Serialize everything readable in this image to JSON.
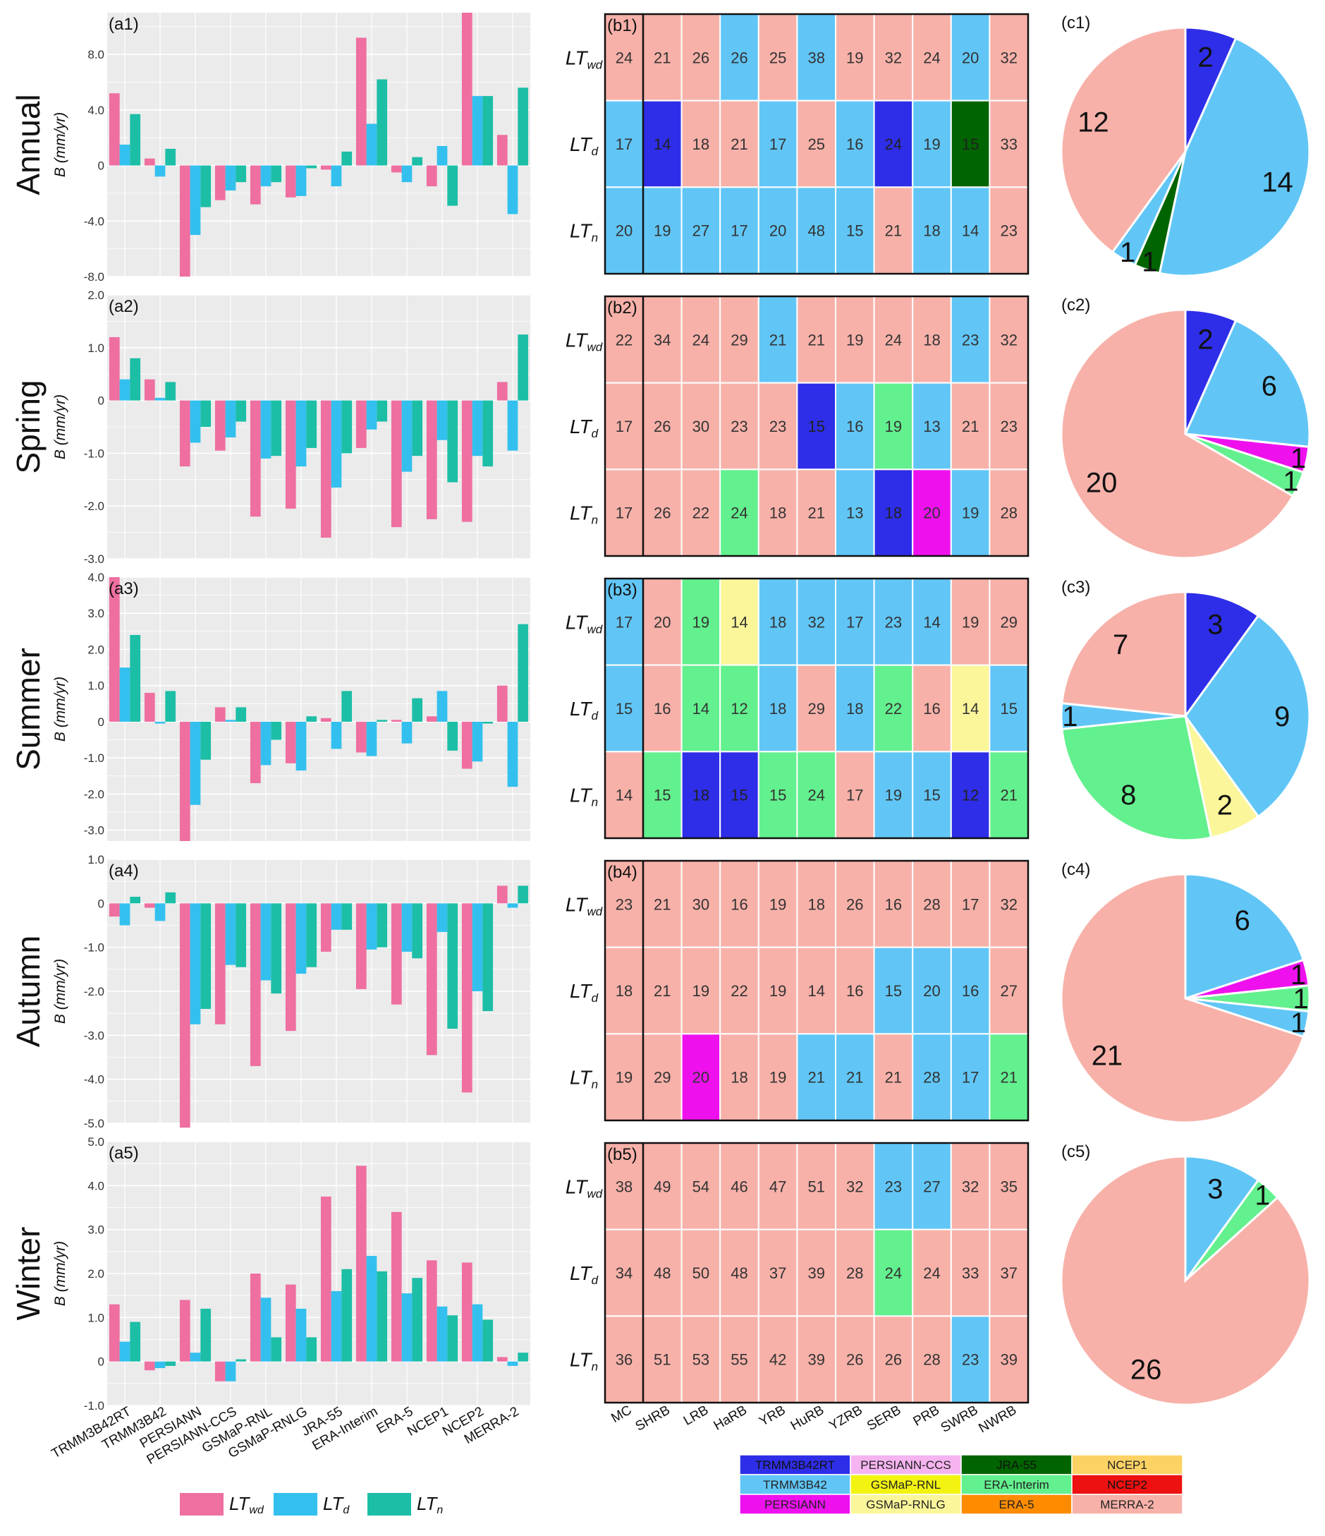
{
  "chart_data": {
    "type": "bar",
    "seasons": [
      "Annual",
      "Spring",
      "Summer",
      "Autumn",
      "Winter"
    ],
    "ylabel": "B (mm/yr)",
    "products": [
      "TRMM3B42RT",
      "TRMM3B42",
      "PERSIANN",
      "PERSIANN-CCS",
      "GSMaP-RNL",
      "GSMaP-RNLG",
      "JRA-55",
      "ERA-Interim",
      "ERA-5",
      "NCEP1",
      "NCEP2",
      "MERRA-2"
    ],
    "series": [
      "LTwd",
      "LTd",
      "LTn"
    ],
    "series_colors": [
      "#ee6fa0",
      "#33c0ee",
      "#1cbea6"
    ],
    "legend": {
      "items": [
        {
          "main": "LT",
          "sub": "wd",
          "color": "#ee6fa0"
        },
        {
          "main": "LT",
          "sub": "d",
          "color": "#33c0ee"
        },
        {
          "main": "LT",
          "sub": "n",
          "color": "#1cbea6"
        }
      ]
    },
    "bar_panels": [
      {
        "label": "(a1)",
        "season": "Annual",
        "ylim": [
          -8,
          11
        ],
        "yticks": [
          {
            "v": 8,
            "t": "8.0"
          },
          {
            "v": 4,
            "t": "4.0"
          },
          {
            "v": 0,
            "t": "0"
          },
          {
            "v": -4,
            "t": "-4.0"
          },
          {
            "v": -8,
            "t": "-8.0"
          }
        ],
        "values": [
          [
            5.2,
            1.5,
            3.7
          ],
          [
            0.5,
            -0.8,
            1.2
          ],
          [
            -8.0,
            -5.0,
            -3.0
          ],
          [
            -2.5,
            -1.8,
            -1.2
          ],
          [
            -2.8,
            -1.5,
            -1.2
          ],
          [
            -2.3,
            -2.2,
            -0.2
          ],
          [
            -0.3,
            -1.5,
            1.0
          ],
          [
            9.2,
            3.0,
            6.2
          ],
          [
            -0.5,
            -1.2,
            0.6
          ],
          [
            -1.5,
            1.4,
            -2.9
          ],
          [
            11.0,
            5.0,
            5.0
          ],
          [
            2.2,
            -3.5,
            5.6
          ]
        ]
      },
      {
        "label": "(a2)",
        "season": "Spring",
        "ylim": [
          -3,
          2
        ],
        "yticks": [
          {
            "v": 2,
            "t": "2.0"
          },
          {
            "v": 1,
            "t": "1.0"
          },
          {
            "v": 0,
            "t": "0"
          },
          {
            "v": -1,
            "t": "-1.0"
          },
          {
            "v": -2,
            "t": "-2.0"
          },
          {
            "v": -3,
            "t": "-3.0"
          }
        ],
        "values": [
          [
            1.2,
            0.4,
            0.8
          ],
          [
            0.4,
            0.05,
            0.35
          ],
          [
            -1.25,
            -0.8,
            -0.5
          ],
          [
            -0.95,
            -0.7,
            -0.4
          ],
          [
            -2.2,
            -1.1,
            -1.05
          ],
          [
            -2.05,
            -1.25,
            -0.9
          ],
          [
            -2.6,
            -1.65,
            -1.0
          ],
          [
            -0.9,
            -0.55,
            -0.4
          ],
          [
            -2.4,
            -1.35,
            -1.05
          ],
          [
            -2.25,
            -0.75,
            -1.55
          ],
          [
            -2.3,
            -1.05,
            -1.25
          ],
          [
            0.35,
            -0.95,
            1.25
          ]
        ]
      },
      {
        "label": "(a3)",
        "season": "Summer",
        "ylim": [
          -3.3,
          4
        ],
        "yticks": [
          {
            "v": 4,
            "t": "4.0"
          },
          {
            "v": 3,
            "t": "3.0"
          },
          {
            "v": 2,
            "t": "2.0"
          },
          {
            "v": 1,
            "t": "1.0"
          },
          {
            "v": 0,
            "t": "0"
          },
          {
            "v": -1,
            "t": "-1.0"
          },
          {
            "v": -2,
            "t": "-2.0"
          },
          {
            "v": -3,
            "t": "-3.0"
          }
        ],
        "values": [
          [
            4.0,
            1.5,
            2.4
          ],
          [
            0.8,
            -0.05,
            0.85
          ],
          [
            -3.3,
            -2.3,
            -1.05
          ],
          [
            0.4,
            0.05,
            0.4
          ],
          [
            -1.7,
            -1.2,
            -0.5
          ],
          [
            -1.15,
            -1.35,
            0.15
          ],
          [
            0.1,
            -0.75,
            0.85
          ],
          [
            -0.85,
            -0.95,
            0.05
          ],
          [
            0.05,
            -0.6,
            0.65
          ],
          [
            0.15,
            0.85,
            -0.8
          ],
          [
            -1.3,
            -1.1,
            -0.05
          ],
          [
            1.0,
            -1.8,
            2.7
          ]
        ]
      },
      {
        "label": "(a4)",
        "season": "Autumn",
        "ylim": [
          -5,
          1
        ],
        "yticks": [
          {
            "v": 1,
            "t": "1.0"
          },
          {
            "v": 0,
            "t": "0"
          },
          {
            "v": -1,
            "t": "-1.0"
          },
          {
            "v": -2,
            "t": "-2.0"
          },
          {
            "v": -3,
            "t": "-3.0"
          },
          {
            "v": -4,
            "t": "-4.0"
          },
          {
            "v": -5,
            "t": "-5.0"
          }
        ],
        "values": [
          [
            -0.3,
            -0.5,
            0.15
          ],
          [
            -0.1,
            -0.4,
            0.25
          ],
          [
            -5.1,
            -2.75,
            -2.4
          ],
          [
            -2.75,
            -1.4,
            -1.45
          ],
          [
            -3.7,
            -1.75,
            -2.05
          ],
          [
            -2.9,
            -1.6,
            -1.45
          ],
          [
            -1.1,
            -0.6,
            -0.6
          ],
          [
            -1.95,
            -1.05,
            -1.0
          ],
          [
            -2.3,
            -1.1,
            -1.25
          ],
          [
            -3.45,
            -0.65,
            -2.85
          ],
          [
            -4.3,
            -2.0,
            -2.45
          ],
          [
            0.4,
            -0.1,
            0.4
          ]
        ]
      },
      {
        "label": "(a5)",
        "season": "Winter",
        "ylim": [
          -1,
          5
        ],
        "yticks": [
          {
            "v": 5,
            "t": "5.0"
          },
          {
            "v": 4,
            "t": "4.0"
          },
          {
            "v": 3,
            "t": "3.0"
          },
          {
            "v": 2,
            "t": "2.0"
          },
          {
            "v": 1,
            "t": "1.0"
          },
          {
            "v": 0,
            "t": "0"
          },
          {
            "v": -1,
            "t": "-1.0"
          }
        ],
        "values": [
          [
            1.3,
            0.45,
            0.9
          ],
          [
            -0.2,
            -0.15,
            -0.1
          ],
          [
            1.4,
            0.2,
            1.2
          ],
          [
            -0.45,
            -0.45,
            0.05
          ],
          [
            2.0,
            1.45,
            0.55
          ],
          [
            1.75,
            1.2,
            0.55
          ],
          [
            3.75,
            1.6,
            2.1
          ],
          [
            4.45,
            2.4,
            2.05
          ],
          [
            3.4,
            1.55,
            1.9
          ],
          [
            2.3,
            1.25,
            1.05
          ],
          [
            2.25,
            1.3,
            0.95
          ],
          [
            0.1,
            -0.1,
            0.2
          ]
        ]
      }
    ],
    "table_columns": [
      "MC",
      "SHRB",
      "LRB",
      "HaRB",
      "YRB",
      "HuRB",
      "YZRB",
      "SERB",
      "PRB",
      "SWRB",
      "NWRB"
    ],
    "table_rows": [
      {
        "main": "LT",
        "sub": "wd"
      },
      {
        "main": "LT",
        "sub": "d"
      },
      {
        "main": "LT",
        "sub": "n"
      }
    ],
    "table_panels": [
      {
        "label": "(b1)",
        "values": [
          [
            24,
            21,
            26,
            26,
            25,
            38,
            19,
            32,
            24,
            20,
            32
          ],
          [
            17,
            14,
            18,
            21,
            17,
            25,
            16,
            24,
            19,
            15,
            33
          ],
          [
            20,
            19,
            27,
            17,
            20,
            48,
            15,
            21,
            18,
            14,
            23
          ]
        ],
        "best": [
          [
            0,
            0,
            0,
            3,
            0,
            3,
            0,
            0,
            0,
            3,
            0
          ],
          [
            3,
            1,
            0,
            0,
            3,
            0,
            3,
            1,
            3,
            5,
            0
          ],
          [
            3,
            3,
            3,
            3,
            3,
            3,
            3,
            0,
            3,
            3,
            0
          ]
        ]
      },
      {
        "label": "(b2)",
        "values": [
          [
            22,
            34,
            24,
            29,
            21,
            21,
            19,
            24,
            18,
            23,
            32
          ],
          [
            17,
            26,
            30,
            23,
            23,
            15,
            16,
            19,
            13,
            21,
            23
          ],
          [
            17,
            26,
            22,
            24,
            18,
            21,
            13,
            18,
            20,
            19,
            28
          ]
        ],
        "best": [
          [
            0,
            0,
            0,
            0,
            3,
            0,
            0,
            0,
            0,
            3,
            0
          ],
          [
            0,
            0,
            0,
            0,
            0,
            1,
            3,
            4,
            3,
            0,
            0
          ],
          [
            0,
            0,
            0,
            4,
            0,
            0,
            3,
            1,
            2,
            3,
            0
          ]
        ]
      },
      {
        "label": "(b3)",
        "values": [
          [
            17,
            20,
            19,
            14,
            18,
            32,
            17,
            23,
            14,
            19,
            29
          ],
          [
            15,
            16,
            14,
            12,
            18,
            29,
            18,
            22,
            16,
            14,
            15
          ],
          [
            14,
            15,
            18,
            15,
            15,
            24,
            17,
            19,
            15,
            12,
            21
          ]
        ],
        "best": [
          [
            3,
            0,
            4,
            6,
            3,
            3,
            3,
            3,
            3,
            0,
            0
          ],
          [
            3,
            0,
            4,
            4,
            3,
            0,
            3,
            4,
            0,
            6,
            3
          ],
          [
            0,
            4,
            1,
            1,
            4,
            4,
            0,
            3,
            3,
            1,
            4
          ]
        ]
      },
      {
        "label": "(b4)",
        "values": [
          [
            23,
            21,
            30,
            16,
            19,
            18,
            26,
            16,
            28,
            17,
            32
          ],
          [
            18,
            21,
            19,
            22,
            19,
            14,
            16,
            15,
            20,
            16,
            27
          ],
          [
            19,
            29,
            20,
            18,
            19,
            21,
            21,
            21,
            28,
            17,
            21
          ]
        ],
        "best": [
          [
            0,
            0,
            0,
            0,
            0,
            0,
            0,
            0,
            0,
            0,
            0
          ],
          [
            0,
            0,
            0,
            0,
            0,
            0,
            0,
            3,
            3,
            3,
            0
          ],
          [
            0,
            0,
            2,
            0,
            0,
            3,
            3,
            0,
            3,
            3,
            4
          ]
        ]
      },
      {
        "label": "(b5)",
        "values": [
          [
            38,
            49,
            54,
            46,
            47,
            51,
            32,
            23,
            27,
            32,
            35
          ],
          [
            34,
            48,
            50,
            48,
            37,
            39,
            28,
            24,
            24,
            33,
            37
          ],
          [
            36,
            51,
            53,
            55,
            42,
            39,
            26,
            26,
            28,
            23,
            39
          ]
        ],
        "best": [
          [
            0,
            0,
            0,
            0,
            0,
            0,
            0,
            3,
            3,
            0,
            0
          ],
          [
            0,
            0,
            0,
            0,
            0,
            0,
            0,
            4,
            0,
            0,
            0
          ],
          [
            0,
            0,
            0,
            0,
            0,
            0,
            0,
            0,
            0,
            3,
            0
          ]
        ]
      }
    ],
    "cell_colors": [
      "#f7b1a9",
      "#2e2ee8",
      "#ee11ee",
      "#61c6f6",
      "#63f08e",
      "#006400",
      "#fbf69a"
    ],
    "pie_panels": [
      {
        "label": "(c1)",
        "slices": [
          {
            "value": 2,
            "label": "2",
            "color": "#2e2ee8"
          },
          {
            "value": 14,
            "label": "14",
            "color": "#61c6f6"
          },
          {
            "value": 1,
            "label": "1",
            "color": "#006400"
          },
          {
            "value": 1,
            "label": "1",
            "color": "#61c6f6"
          },
          {
            "value": 12,
            "label": "12",
            "color": "#f7b1a9"
          }
        ]
      },
      {
        "label": "(c2)",
        "slices": [
          {
            "value": 2,
            "label": "2",
            "color": "#2e2ee8"
          },
          {
            "value": 6,
            "label": "6",
            "color": "#61c6f6"
          },
          {
            "value": 1,
            "label": "1",
            "color": "#ee11ee"
          },
          {
            "value": 1,
            "label": "1",
            "color": "#63f08e"
          },
          {
            "value": 20,
            "label": "20",
            "color": "#f7b1a9"
          }
        ]
      },
      {
        "label": "(c3)",
        "slices": [
          {
            "value": 3,
            "label": "3",
            "color": "#2e2ee8"
          },
          {
            "value": 9,
            "label": "9",
            "color": "#61c6f6"
          },
          {
            "value": 2,
            "label": "2",
            "color": "#fbf69a"
          },
          {
            "value": 8,
            "label": "8",
            "color": "#63f08e"
          },
          {
            "value": 1,
            "label": "1",
            "color": "#61c6f6"
          },
          {
            "value": 7,
            "label": "7",
            "color": "#f7b1a9"
          }
        ]
      },
      {
        "label": "(c4)",
        "slices": [
          {
            "value": 6,
            "label": "6",
            "color": "#61c6f6"
          },
          {
            "value": 1,
            "label": "1",
            "color": "#ee11ee"
          },
          {
            "value": 1,
            "label": "1",
            "color": "#63f08e"
          },
          {
            "value": 1,
            "label": "1",
            "color": "#61c6f6"
          },
          {
            "value": 21,
            "label": "21",
            "color": "#f7b1a9"
          }
        ]
      },
      {
        "label": "(c5)",
        "slices": [
          {
            "value": 3,
            "label": "3",
            "color": "#61c6f6"
          },
          {
            "value": 1,
            "label": "1",
            "color": "#63f08e"
          },
          {
            "value": 26,
            "label": "26",
            "color": "#f7b1a9"
          }
        ]
      }
    ],
    "product_legend": [
      {
        "name": "TRMM3B42RT",
        "color": "#2e2ee8"
      },
      {
        "name": "TRMM3B42",
        "color": "#61c6f6"
      },
      {
        "name": "PERSIANN",
        "color": "#ee11ee"
      },
      {
        "name": "PERSIANN-CCS",
        "color": "#f5b3f0"
      },
      {
        "name": "GSMaP-RNL",
        "color": "#f3f312"
      },
      {
        "name": "GSMaP-RNLG",
        "color": "#fbf69a"
      },
      {
        "name": "JRA-55",
        "color": "#006400"
      },
      {
        "name": "ERA-Interim",
        "color": "#63f08e"
      },
      {
        "name": "ERA-5",
        "color": "#ff8c00"
      },
      {
        "name": "NCEP1",
        "color": "#fdd264"
      },
      {
        "name": "NCEP2",
        "color": "#ee1111"
      },
      {
        "name": "MERRA-2",
        "color": "#f7b1a9"
      }
    ]
  }
}
